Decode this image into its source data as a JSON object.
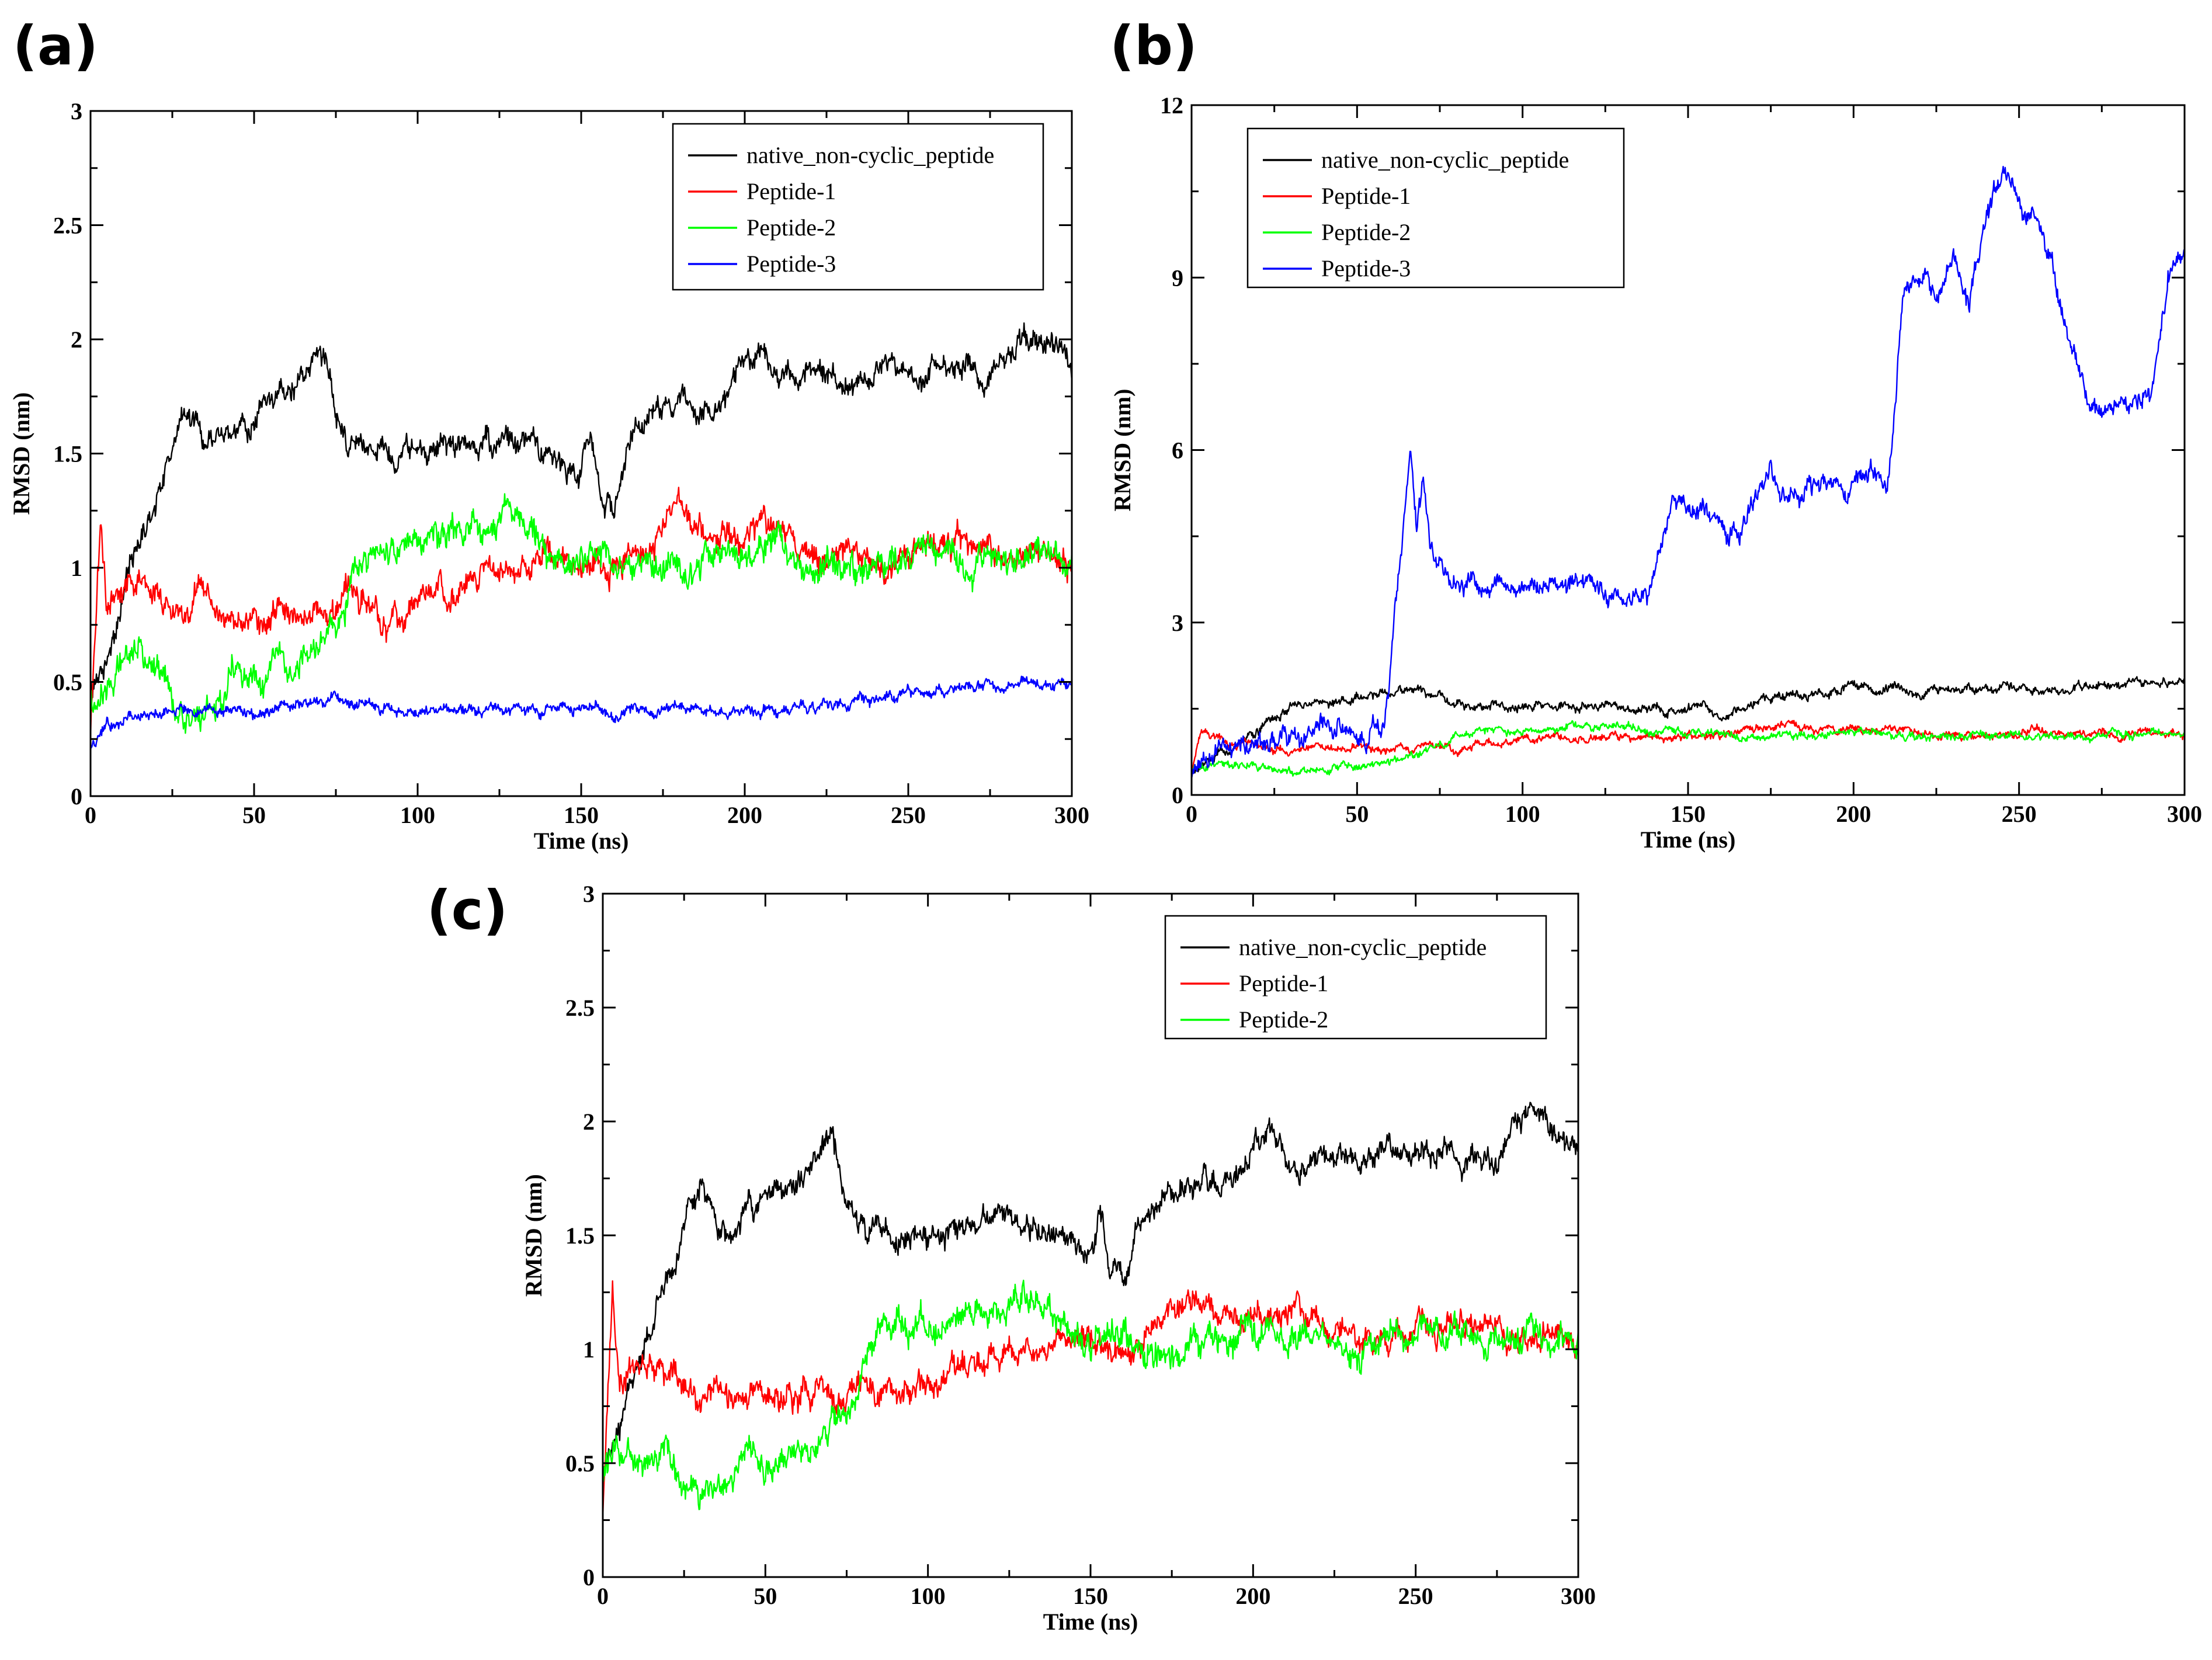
{
  "figure": {
    "panels": [
      "a",
      "b",
      "c"
    ]
  },
  "chart_data": [
    {
      "panel": "a",
      "label": "(a)",
      "type": "line",
      "xlabel": "Time (ns)",
      "ylabel": "RMSD (nm)",
      "xlim": [
        0,
        300
      ],
      "ylim": [
        0,
        3
      ],
      "x_ticks": [
        0,
        50,
        100,
        150,
        200,
        250,
        300
      ],
      "x_tick_labels": [
        "0",
        "50",
        "100",
        "150",
        "200",
        "250",
        "300"
      ],
      "y_ticks": [
        0,
        0.5,
        1,
        1.5,
        2,
        2.5,
        3
      ],
      "y_tick_labels": [
        "0",
        "0.5",
        "1",
        "1.5",
        "2",
        "2.5",
        "3"
      ],
      "legend_position": "top-right",
      "series": [
        {
          "name": "native_non-cyclic_peptide",
          "color": "#000000",
          "noise": 0.055,
          "x": [
            0,
            5,
            10,
            15,
            20,
            25,
            30,
            35,
            40,
            45,
            50,
            55,
            60,
            65,
            70,
            75,
            80,
            85,
            90,
            100,
            110,
            120,
            130,
            140,
            150,
            153,
            156,
            160,
            165,
            170,
            175,
            180,
            185,
            190,
            195,
            200,
            205,
            210,
            215,
            220,
            225,
            230,
            235,
            240,
            245,
            250,
            255,
            260,
            265,
            270,
            275,
            280,
            285,
            290,
            295,
            300
          ],
          "y": [
            0.45,
            0.6,
            0.9,
            1.1,
            1.3,
            1.55,
            1.7,
            1.55,
            1.55,
            1.6,
            1.65,
            1.7,
            1.75,
            1.8,
            1.95,
            1.7,
            1.55,
            1.5,
            1.5,
            1.5,
            1.55,
            1.55,
            1.55,
            1.5,
            1.45,
            1.6,
            1.3,
            1.25,
            1.55,
            1.6,
            1.7,
            1.75,
            1.7,
            1.65,
            1.75,
            1.9,
            1.95,
            1.85,
            1.8,
            1.9,
            1.85,
            1.8,
            1.8,
            1.85,
            1.9,
            1.85,
            1.85,
            1.9,
            1.85,
            1.85,
            1.8,
            1.95,
            2.05,
            2.0,
            1.95,
            1.9
          ]
        },
        {
          "name": "Peptide-1",
          "color": "#ff0000",
          "noise": 0.06,
          "x": [
            0,
            3,
            5,
            10,
            15,
            20,
            25,
            30,
            35,
            40,
            50,
            60,
            70,
            80,
            90,
            100,
            110,
            120,
            130,
            140,
            150,
            160,
            170,
            180,
            190,
            200,
            210,
            220,
            230,
            240,
            250,
            260,
            270,
            280,
            290,
            300
          ],
          "y": [
            0.3,
            1.2,
            0.85,
            0.9,
            0.95,
            0.9,
            0.85,
            0.8,
            0.9,
            0.8,
            0.8,
            0.8,
            0.8,
            0.85,
            0.8,
            0.85,
            0.9,
            1.0,
            1.0,
            1.05,
            1.05,
            1.0,
            1.1,
            1.25,
            1.15,
            1.15,
            1.2,
            1.1,
            1.05,
            1.0,
            1.1,
            1.1,
            1.1,
            1.05,
            1.1,
            1.0
          ]
        },
        {
          "name": "Peptide-2",
          "color": "#00ff00",
          "noise": 0.065,
          "x": [
            0,
            5,
            10,
            15,
            20,
            25,
            30,
            35,
            40,
            45,
            50,
            55,
            60,
            65,
            70,
            75,
            78,
            80,
            85,
            90,
            100,
            110,
            120,
            130,
            135,
            140,
            150,
            160,
            170,
            180,
            190,
            200,
            210,
            220,
            230,
            240,
            250,
            260,
            270,
            280,
            290,
            300
          ],
          "y": [
            0.45,
            0.5,
            0.55,
            0.6,
            0.55,
            0.4,
            0.35,
            0.35,
            0.4,
            0.55,
            0.5,
            0.5,
            0.55,
            0.6,
            0.65,
            0.7,
            0.8,
            1.0,
            1.05,
            1.1,
            1.1,
            1.15,
            1.2,
            1.25,
            1.15,
            1.05,
            1.05,
            1.05,
            1.0,
            1.0,
            1.05,
            1.1,
            1.1,
            1.05,
            0.95,
            1.05,
            1.05,
            1.05,
            1.0,
            1.05,
            1.05,
            1.05
          ]
        },
        {
          "name": "Peptide-3",
          "color": "#0000ff",
          "noise": 0.025,
          "x": [
            0,
            5,
            10,
            20,
            30,
            40,
            50,
            60,
            70,
            80,
            90,
            100,
            110,
            120,
            130,
            140,
            150,
            160,
            170,
            180,
            190,
            200,
            210,
            220,
            230,
            240,
            250,
            260,
            270,
            280,
            290,
            300
          ],
          "y": [
            0.2,
            0.3,
            0.35,
            0.38,
            0.4,
            0.38,
            0.36,
            0.4,
            0.42,
            0.4,
            0.38,
            0.36,
            0.37,
            0.38,
            0.38,
            0.38,
            0.38,
            0.37,
            0.38,
            0.38,
            0.37,
            0.38,
            0.37,
            0.38,
            0.4,
            0.42,
            0.45,
            0.47,
            0.47,
            0.48,
            0.5,
            0.5
          ]
        }
      ]
    },
    {
      "panel": "b",
      "label": "(b)",
      "type": "line",
      "xlabel": "Time (ns)",
      "ylabel": "RMSD (nm)",
      "xlim": [
        0,
        300
      ],
      "ylim": [
        0,
        12
      ],
      "x_ticks": [
        0,
        50,
        100,
        150,
        200,
        250,
        300
      ],
      "x_tick_labels": [
        "0",
        "50",
        "100",
        "150",
        "200",
        "250",
        "300"
      ],
      "y_ticks": [
        0,
        3,
        6,
        9,
        12
      ],
      "y_tick_labels": [
        "0",
        "3",
        "6",
        "9",
        "12"
      ],
      "legend_position": "top-left",
      "series": [
        {
          "name": "native_non-cyclic_peptide",
          "color": "#000000",
          "noise": 0.08,
          "x": [
            0,
            10,
            20,
            30,
            40,
            50,
            60,
            70,
            80,
            90,
            100,
            110,
            120,
            130,
            140,
            150,
            155,
            160,
            170,
            180,
            190,
            200,
            210,
            220,
            230,
            240,
            250,
            260,
            270,
            280,
            290,
            300
          ],
          "y": [
            0.4,
            0.7,
            1.1,
            1.6,
            1.6,
            1.7,
            1.8,
            1.9,
            1.55,
            1.5,
            1.5,
            1.55,
            1.55,
            1.5,
            1.45,
            1.5,
            1.6,
            1.3,
            1.6,
            1.7,
            1.75,
            1.9,
            1.85,
            1.8,
            1.85,
            1.85,
            1.85,
            1.85,
            1.85,
            1.95,
            2.0,
            1.9
          ]
        },
        {
          "name": "Peptide-1",
          "color": "#ff0000",
          "noise": 0.07,
          "x": [
            0,
            3,
            10,
            20,
            30,
            40,
            50,
            60,
            70,
            80,
            90,
            100,
            110,
            120,
            130,
            140,
            150,
            160,
            170,
            180,
            190,
            200,
            210,
            220,
            230,
            240,
            250,
            260,
            270,
            280,
            290,
            300
          ],
          "y": [
            0.4,
            1.1,
            0.9,
            0.85,
            0.8,
            0.8,
            0.8,
            0.8,
            0.85,
            0.8,
            0.85,
            0.9,
            1.0,
            1.0,
            1.05,
            1.0,
            1.0,
            1.05,
            1.15,
            1.2,
            1.15,
            1.15,
            1.2,
            1.05,
            1.0,
            1.05,
            1.1,
            1.1,
            1.05,
            1.05,
            1.1,
            1.0
          ]
        },
        {
          "name": "Peptide-2",
          "color": "#00ff00",
          "noise": 0.07,
          "x": [
            0,
            10,
            20,
            30,
            40,
            50,
            60,
            70,
            80,
            90,
            100,
            110,
            120,
            130,
            140,
            150,
            160,
            170,
            180,
            190,
            200,
            210,
            220,
            230,
            240,
            250,
            260,
            270,
            280,
            290,
            300
          ],
          "y": [
            0.45,
            0.55,
            0.5,
            0.4,
            0.45,
            0.5,
            0.55,
            0.75,
            1.05,
            1.1,
            1.1,
            1.15,
            1.2,
            1.2,
            1.1,
            1.05,
            1.05,
            1.0,
            1.0,
            1.05,
            1.1,
            1.05,
            1.0,
            1.0,
            1.05,
            1.05,
            1.0,
            1.0,
            1.05,
            1.05,
            1.05
          ]
        },
        {
          "name": "Peptide-3",
          "color": "#0000ff",
          "noise": 0.18,
          "x": [
            0,
            10,
            20,
            30,
            40,
            50,
            58,
            62,
            66,
            68,
            70,
            72,
            75,
            80,
            90,
            100,
            110,
            120,
            130,
            135,
            138,
            140,
            145,
            150,
            155,
            160,
            165,
            170,
            175,
            180,
            190,
            200,
            205,
            210,
            212,
            215,
            220,
            225,
            230,
            235,
            240,
            245,
            250,
            255,
            260,
            265,
            270,
            275,
            280,
            285,
            290,
            295,
            300
          ],
          "y": [
            0.4,
            0.7,
            0.9,
            1.0,
            1.2,
            1.0,
            1.2,
            3.5,
            6.0,
            4.5,
            5.5,
            4.2,
            4.0,
            3.7,
            3.7,
            3.6,
            3.7,
            3.7,
            3.6,
            3.6,
            3.3,
            4.0,
            5.1,
            5.0,
            5.0,
            4.7,
            4.5,
            5.3,
            5.7,
            5.4,
            5.3,
            5.4,
            5.8,
            5.2,
            6.5,
            8.8,
            9.0,
            8.7,
            9.3,
            8.4,
            10.0,
            10.8,
            10.3,
            10.0,
            9.2,
            8.0,
            7.0,
            6.6,
            6.8,
            7.0,
            6.8,
            9.0,
            9.5
          ]
        }
      ]
    },
    {
      "panel": "c",
      "label": "(c)",
      "type": "line",
      "xlabel": "Time (ns)",
      "ylabel": "RMSD (nm)",
      "xlim": [
        0,
        300
      ],
      "ylim": [
        0,
        3
      ],
      "x_ticks": [
        0,
        50,
        100,
        150,
        200,
        250,
        300
      ],
      "x_tick_labels": [
        "0",
        "50",
        "100",
        "150",
        "200",
        "250",
        "300"
      ],
      "y_ticks": [
        0,
        0.5,
        1,
        1.5,
        2,
        2.5,
        3
      ],
      "y_tick_labels": [
        "0",
        "0.5",
        "1",
        "1.5",
        "2",
        "2.5",
        "3"
      ],
      "legend_position": "top-right",
      "series": [
        {
          "name": "native_non-cyclic_peptide",
          "color": "#000000",
          "noise": 0.055,
          "x": [
            0,
            5,
            10,
            15,
            20,
            25,
            30,
            35,
            40,
            45,
            50,
            55,
            60,
            65,
            70,
            75,
            80,
            85,
            90,
            100,
            110,
            120,
            130,
            140,
            150,
            153,
            156,
            160,
            165,
            170,
            175,
            180,
            185,
            190,
            195,
            200,
            205,
            210,
            215,
            220,
            225,
            230,
            235,
            240,
            245,
            250,
            255,
            260,
            265,
            270,
            275,
            280,
            285,
            290,
            295,
            300
          ],
          "y": [
            0.45,
            0.6,
            0.9,
            1.1,
            1.3,
            1.55,
            1.7,
            1.55,
            1.55,
            1.6,
            1.65,
            1.7,
            1.75,
            1.8,
            1.95,
            1.7,
            1.55,
            1.5,
            1.5,
            1.5,
            1.55,
            1.55,
            1.55,
            1.5,
            1.45,
            1.6,
            1.3,
            1.25,
            1.55,
            1.6,
            1.7,
            1.75,
            1.7,
            1.65,
            1.75,
            1.9,
            1.95,
            1.85,
            1.8,
            1.9,
            1.85,
            1.8,
            1.8,
            1.85,
            1.9,
            1.85,
            1.85,
            1.9,
            1.85,
            1.85,
            1.8,
            1.95,
            2.05,
            2.0,
            1.95,
            1.9
          ]
        },
        {
          "name": "Peptide-1",
          "color": "#ff0000",
          "noise": 0.06,
          "x": [
            0,
            3,
            5,
            10,
            15,
            20,
            25,
            30,
            35,
            40,
            50,
            60,
            70,
            80,
            90,
            100,
            110,
            120,
            130,
            140,
            150,
            160,
            170,
            180,
            190,
            200,
            210,
            220,
            230,
            240,
            250,
            260,
            270,
            280,
            290,
            300
          ],
          "y": [
            0.3,
            1.2,
            0.85,
            0.9,
            0.95,
            0.9,
            0.85,
            0.8,
            0.9,
            0.8,
            0.8,
            0.8,
            0.8,
            0.85,
            0.8,
            0.85,
            0.9,
            1.0,
            1.0,
            1.05,
            1.05,
            1.0,
            1.1,
            1.25,
            1.15,
            1.15,
            1.2,
            1.1,
            1.05,
            1.0,
            1.1,
            1.1,
            1.1,
            1.05,
            1.1,
            1.0
          ]
        },
        {
          "name": "Peptide-2",
          "color": "#00ff00",
          "noise": 0.065,
          "x": [
            0,
            5,
            10,
            15,
            20,
            25,
            30,
            35,
            40,
            45,
            50,
            55,
            60,
            65,
            70,
            75,
            78,
            80,
            85,
            90,
            100,
            110,
            120,
            130,
            135,
            140,
            150,
            160,
            170,
            180,
            190,
            200,
            210,
            220,
            230,
            240,
            250,
            260,
            270,
            280,
            290,
            300
          ],
          "y": [
            0.45,
            0.5,
            0.55,
            0.6,
            0.55,
            0.4,
            0.35,
            0.35,
            0.4,
            0.55,
            0.5,
            0.5,
            0.55,
            0.6,
            0.65,
            0.7,
            0.8,
            1.0,
            1.05,
            1.1,
            1.1,
            1.15,
            1.2,
            1.25,
            1.15,
            1.05,
            1.05,
            1.05,
            1.0,
            1.0,
            1.05,
            1.1,
            1.1,
            1.05,
            0.95,
            1.05,
            1.05,
            1.05,
            1.0,
            1.05,
            1.05,
            1.05
          ]
        }
      ]
    }
  ]
}
